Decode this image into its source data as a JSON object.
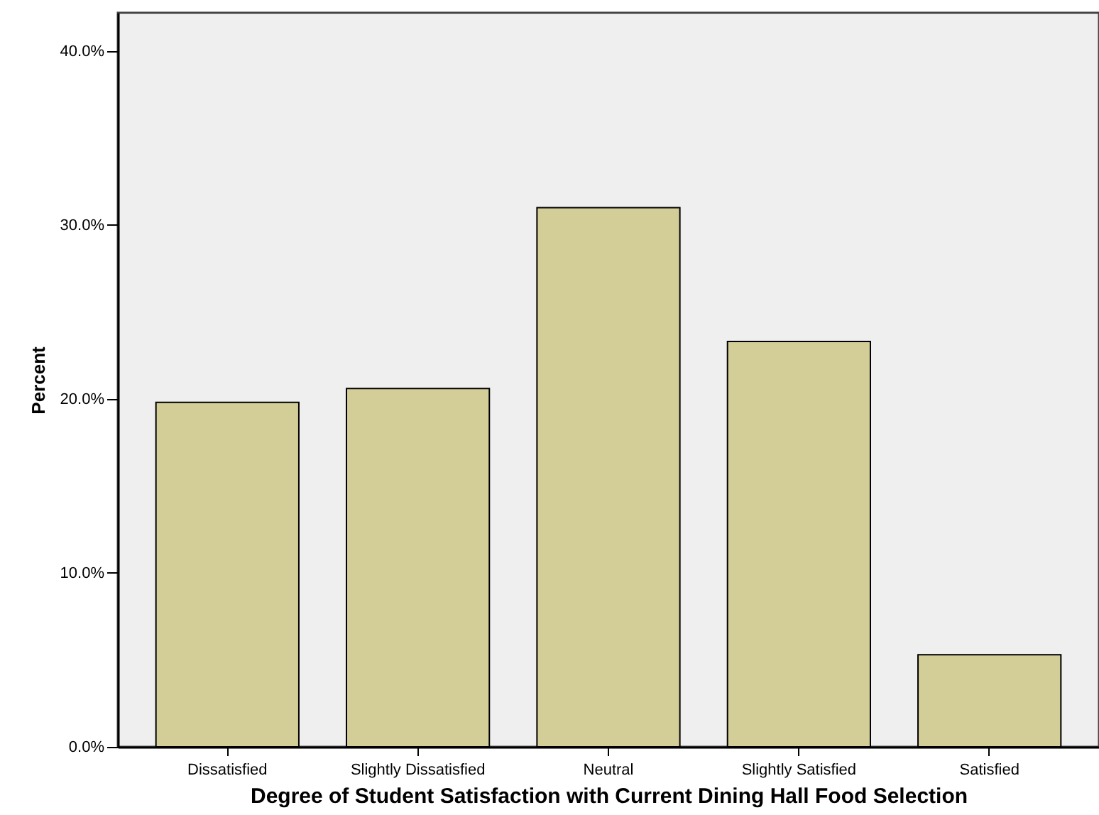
{
  "chart_data": {
    "type": "bar",
    "xlabel": "Degree of Student Satisfaction with Current Dining Hall Food Selection",
    "ylabel": "Percent",
    "categories": [
      "Dissatisfied",
      "Slightly Dissatisfied",
      "Neutral",
      "Slightly Satisfied",
      "Satisfied"
    ],
    "values": [
      19.8,
      20.6,
      31.0,
      23.3,
      5.3
    ],
    "color": "#d3ce98",
    "ylim": [
      0,
      42.2
    ],
    "yticks": [
      {
        "value": 0,
        "label": "0.0%"
      },
      {
        "value": 10,
        "label": "10.0%"
      },
      {
        "value": 20,
        "label": "20.0%"
      },
      {
        "value": 30,
        "label": "30.0%"
      },
      {
        "value": 40,
        "label": "40.0%"
      }
    ],
    "grid": false
  }
}
